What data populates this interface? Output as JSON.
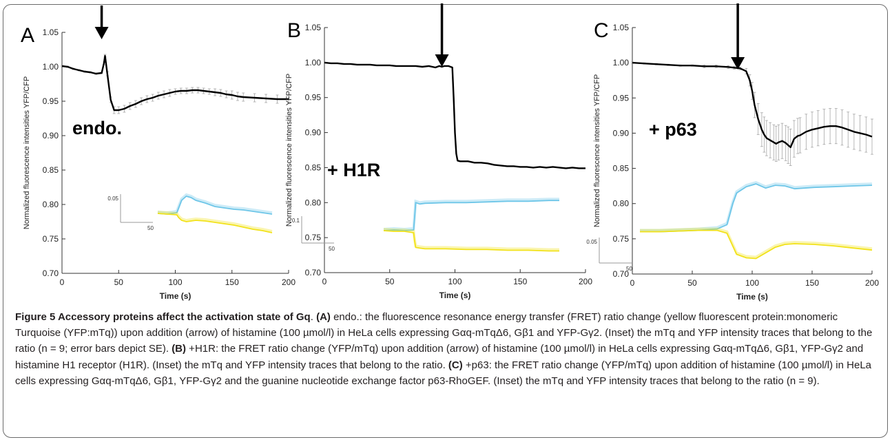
{
  "figure": {
    "caption_lead": "Figure 5 Accessory proteins affect the activation state of Gq",
    "caption_segments": [
      {
        "label": "(A)",
        "text": " endo.: the fluorescence resonance energy transfer (FRET) ratio change (yellow fluorescent protein:monomeric Turquoise (YFP:mTq)) upon addition (arrow) of histamine (100 µmol/l) in HeLa cells expressing Gαq-mTqΔ6, Gβ1 and YFP-Gγ2. (Inset) the mTq and YFP intensity traces that belong to the ratio (n = 9; error bars depict SE). "
      },
      {
        "label": "(B)",
        "text": " +H1R: the FRET ratio change (YFP/mTq) upon addition (arrow) of histamine (100 µmol/l) in HeLa cells expressing Gαq-mTqΔ6, Gβ1, YFP-Gγ2 and histamine H1 receptor (H1R). (Inset) the mTq and YFP intensity traces that belong to the ratio. "
      },
      {
        "label": "(C)",
        "text": " +p63: the FRET ratio change (YFP/mTq) upon addition of histamine (100 µmol/l) in HeLa cells expressing Gαq-mTqΔ6, Gβ1, YFP-Gγ2 and the guanine nucleotide exchange factor p63-RhoGEF. (Inset) the mTq and YFP intensity traces that belong to the ratio (n = 9)."
      }
    ]
  },
  "colors": {
    "ratio": "#000000",
    "mtq": "#6ec6e8",
    "yfp": "#f2e21a",
    "errorbar": "#9a9a9a",
    "axis": "#333333"
  },
  "chart_data": [
    {
      "panel": "A",
      "type": "line",
      "condition_label": "endo.",
      "xlabel": "Time (s)",
      "ylabel": "Normalized fluorescence intensities YFP/CFP",
      "xlim": [
        0,
        200
      ],
      "ylim": [
        0.7,
        1.05
      ],
      "x_ticks": [
        "0",
        "50",
        "100",
        "150",
        "200"
      ],
      "y_ticks": [
        "0.70",
        "0.75",
        "0.80",
        "0.85",
        "0.90",
        "0.95",
        "1.00",
        "1.05"
      ],
      "arrow_time": 35,
      "error_bars": true,
      "series": [
        {
          "role": "ratio",
          "x": [
            0,
            5,
            10,
            15,
            20,
            25,
            30,
            35,
            37,
            38,
            40,
            43,
            46,
            50,
            55,
            60,
            65,
            70,
            75,
            80,
            85,
            90,
            95,
            100,
            105,
            110,
            115,
            120,
            125,
            130,
            135,
            140,
            145,
            150,
            155,
            160,
            170,
            180,
            190,
            200
          ],
          "y": [
            1.001,
            1.0,
            0.997,
            0.995,
            0.993,
            0.992,
            0.99,
            0.991,
            1.005,
            1.016,
            0.99,
            0.952,
            0.937,
            0.937,
            0.939,
            0.943,
            0.946,
            0.95,
            0.953,
            0.955,
            0.958,
            0.96,
            0.962,
            0.964,
            0.965,
            0.965,
            0.966,
            0.966,
            0.965,
            0.964,
            0.963,
            0.962,
            0.96,
            0.959,
            0.957,
            0.956,
            0.955,
            0.954,
            0.953,
            0.953
          ],
          "err": [
            0.001,
            0.001,
            0.001,
            0.001,
            0.001,
            0.001,
            0.001,
            0.001,
            0.002,
            0.002,
            0.003,
            0.004,
            0.005,
            0.005,
            0.005,
            0.005,
            0.005,
            0.005,
            0.005,
            0.005,
            0.005,
            0.005,
            0.005,
            0.004,
            0.004,
            0.004,
            0.004,
            0.004,
            0.004,
            0.004,
            0.005,
            0.005,
            0.005,
            0.006,
            0.006,
            0.006,
            0.006,
            0.006,
            0.006,
            0.006
          ]
        }
      ],
      "inset": {
        "scale_y": "0.05",
        "scale_x": "50",
        "x": [
          0,
          10,
          20,
          22,
          25,
          30,
          35,
          40,
          50,
          60,
          70,
          80,
          90,
          100,
          110,
          120
        ],
        "mtq": [
          0.787,
          0.786,
          0.788,
          0.795,
          0.806,
          0.812,
          0.81,
          0.806,
          0.802,
          0.797,
          0.795,
          0.793,
          0.792,
          0.79,
          0.788,
          0.786
        ],
        "yfp": [
          0.787,
          0.786,
          0.785,
          0.781,
          0.777,
          0.775,
          0.776,
          0.777,
          0.776,
          0.774,
          0.772,
          0.77,
          0.767,
          0.764,
          0.762,
          0.759
        ]
      }
    },
    {
      "panel": "B",
      "type": "line",
      "condition_label": "+ H1R",
      "xlabel": "Time (s)",
      "ylabel": "Normalized fluorescence intensities YFP/CFP",
      "xlim": [
        0,
        200
      ],
      "ylim": [
        0.7,
        1.05
      ],
      "x_ticks": [
        "0",
        "50",
        "100",
        "150",
        "200"
      ],
      "y_ticks": [
        "0.70",
        "0.75",
        "0.80",
        "0.85",
        "0.90",
        "0.95",
        "1.00",
        "1.05"
      ],
      "arrow_time": 90,
      "error_bars": false,
      "series": [
        {
          "role": "ratio",
          "x": [
            0,
            5,
            10,
            15,
            20,
            25,
            30,
            35,
            40,
            45,
            50,
            55,
            60,
            65,
            70,
            75,
            80,
            85,
            88,
            90,
            92,
            95,
            98,
            99,
            100,
            101,
            102,
            104,
            106,
            110,
            115,
            120,
            125,
            130,
            135,
            140,
            145,
            150,
            155,
            160,
            165,
            170,
            175,
            180,
            185,
            190,
            195,
            200
          ],
          "y": [
            1.0,
            0.999,
            0.999,
            0.998,
            0.998,
            0.997,
            0.997,
            0.997,
            0.996,
            0.996,
            0.996,
            0.995,
            0.995,
            0.995,
            0.995,
            0.994,
            0.995,
            0.993,
            0.995,
            0.994,
            0.995,
            0.995,
            0.993,
            0.95,
            0.9,
            0.87,
            0.86,
            0.859,
            0.859,
            0.859,
            0.857,
            0.857,
            0.856,
            0.854,
            0.853,
            0.852,
            0.852,
            0.851,
            0.851,
            0.85,
            0.851,
            0.85,
            0.851,
            0.85,
            0.849,
            0.85,
            0.849,
            0.849
          ]
        }
      ],
      "inset": {
        "scale_y": "0.1",
        "scale_x": "50",
        "x": [
          0,
          10,
          20,
          29,
          30,
          31,
          35,
          40,
          60,
          80,
          100,
          120,
          140,
          160,
          170
        ],
        "mtq": [
          0.76,
          0.761,
          0.76,
          0.761,
          0.78,
          0.8,
          0.798,
          0.799,
          0.8,
          0.8,
          0.801,
          0.802,
          0.802,
          0.803,
          0.803
        ],
        "yfp": [
          0.76,
          0.759,
          0.759,
          0.757,
          0.745,
          0.736,
          0.735,
          0.734,
          0.734,
          0.733,
          0.733,
          0.732,
          0.732,
          0.731,
          0.731
        ]
      }
    },
    {
      "panel": "C",
      "type": "line",
      "condition_label": "+ p63",
      "xlabel": "Time (s)",
      "ylabel": "Normalized fluorescence intensities YFP/CFP",
      "xlim": [
        0,
        200
      ],
      "ylim": [
        0.7,
        1.05
      ],
      "x_ticks": [
        "0",
        "50",
        "100",
        "150",
        "200"
      ],
      "y_ticks": [
        "0.70",
        "0.75",
        "0.80",
        "0.85",
        "0.90",
        "0.95",
        "1.00",
        "1.05"
      ],
      "arrow_time": 88,
      "error_bars": true,
      "series": [
        {
          "role": "ratio",
          "x": [
            0,
            10,
            20,
            30,
            40,
            50,
            60,
            70,
            80,
            85,
            90,
            95,
            98,
            100,
            102,
            105,
            108,
            110,
            112,
            115,
            118,
            120,
            122,
            125,
            128,
            130,
            132,
            135,
            138,
            140,
            145,
            150,
            155,
            160,
            165,
            170,
            175,
            180,
            185,
            190,
            195,
            200
          ],
          "y": [
            1.0,
            0.999,
            0.998,
            0.997,
            0.996,
            0.996,
            0.995,
            0.995,
            0.994,
            0.993,
            0.992,
            0.988,
            0.975,
            0.96,
            0.94,
            0.92,
            0.905,
            0.898,
            0.893,
            0.89,
            0.887,
            0.885,
            0.887,
            0.889,
            0.886,
            0.883,
            0.88,
            0.892,
            0.896,
            0.897,
            0.902,
            0.905,
            0.907,
            0.909,
            0.91,
            0.91,
            0.908,
            0.905,
            0.902,
            0.9,
            0.898,
            0.895
          ],
          "err": [
            0.001,
            0.001,
            0.001,
            0.001,
            0.001,
            0.001,
            0.002,
            0.002,
            0.002,
            0.002,
            0.002,
            0.004,
            0.008,
            0.012,
            0.018,
            0.022,
            0.024,
            0.025,
            0.025,
            0.025,
            0.025,
            0.025,
            0.025,
            0.025,
            0.025,
            0.026,
            0.026,
            0.026,
            0.025,
            0.025,
            0.025,
            0.025,
            0.025,
            0.025,
            0.025,
            0.025,
            0.025,
            0.025,
            0.025,
            0.025,
            0.025,
            0.025
          ]
        }
      ],
      "inset": {
        "scale_y": "0.05",
        "scale_x": "50",
        "x": [
          0,
          10,
          20,
          30,
          40,
          45,
          48,
          50,
          55,
          60,
          65,
          70,
          75,
          80,
          90,
          100,
          110,
          120
        ],
        "mtq": [
          0.76,
          0.76,
          0.761,
          0.762,
          0.764,
          0.77,
          0.8,
          0.815,
          0.824,
          0.828,
          0.822,
          0.826,
          0.825,
          0.821,
          0.823,
          0.824,
          0.825,
          0.826
        ],
        "yfp": [
          0.76,
          0.76,
          0.761,
          0.762,
          0.762,
          0.758,
          0.74,
          0.728,
          0.723,
          0.722,
          0.73,
          0.738,
          0.742,
          0.743,
          0.742,
          0.74,
          0.737,
          0.734
        ]
      }
    }
  ]
}
